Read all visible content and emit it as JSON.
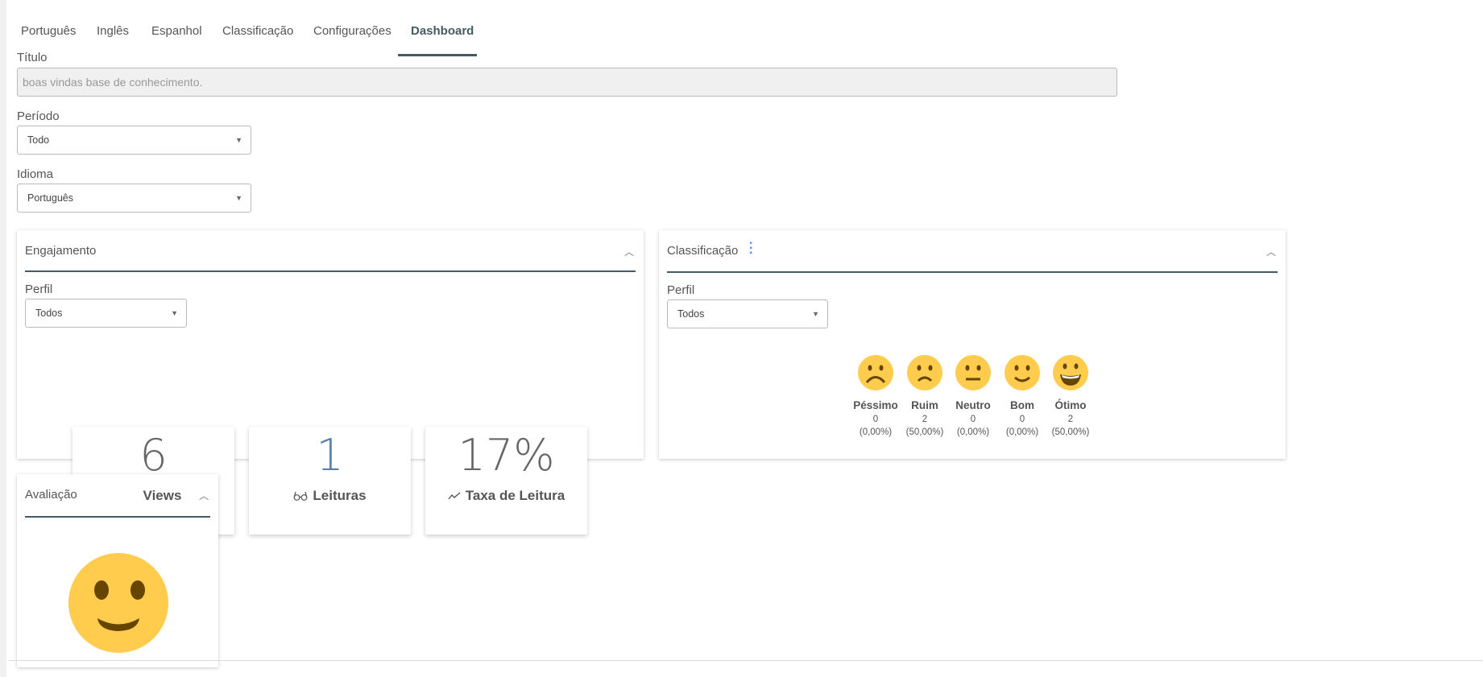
{
  "tabs": [
    {
      "label": "Português"
    },
    {
      "label": "Inglês"
    },
    {
      "label": "Espanhol"
    },
    {
      "label": "Classificação"
    },
    {
      "label": "Configurações"
    },
    {
      "label": "Dashboard",
      "active": true
    }
  ],
  "form": {
    "title_label": "Título",
    "title_value": "boas vindas base de conhecimento.",
    "period_label": "Período",
    "period_value": "Todo",
    "language_label": "Idioma",
    "language_value": "Português"
  },
  "engagement": {
    "title": "Engajamento",
    "profile_label": "Perfil",
    "profile_value": "Todos",
    "stats": [
      {
        "value": "6",
        "label": "Views",
        "icon": "eye-icon"
      },
      {
        "value": "1",
        "label": "Leituras",
        "icon": "glasses-icon"
      },
      {
        "value": "17%",
        "label": "Taxa de Leitura",
        "icon": "trend-icon"
      }
    ]
  },
  "classification": {
    "title": "Classificação",
    "profile_label": "Perfil",
    "profile_value": "Todos",
    "ratings": [
      {
        "label": "Péssimo",
        "count": "0",
        "percent": "(0,00%)",
        "icon": "very-sad-face-icon"
      },
      {
        "label": "Ruim",
        "count": "2",
        "percent": "(50,00%)",
        "icon": "sad-face-icon"
      },
      {
        "label": "Neutro",
        "count": "0",
        "percent": "(0,00%)",
        "icon": "neutral-face-icon"
      },
      {
        "label": "Bom",
        "count": "0",
        "percent": "(0,00%)",
        "icon": "smile-face-icon"
      },
      {
        "label": "Ótimo",
        "count": "2",
        "percent": "(50,00%)",
        "icon": "grin-face-icon"
      }
    ]
  },
  "evaluation": {
    "title": "Avaliação",
    "icon": "smile-face-icon"
  },
  "colors": {
    "accent": "#455a64",
    "emoji": "#ffcc4d",
    "emoji_feature": "#664500"
  }
}
